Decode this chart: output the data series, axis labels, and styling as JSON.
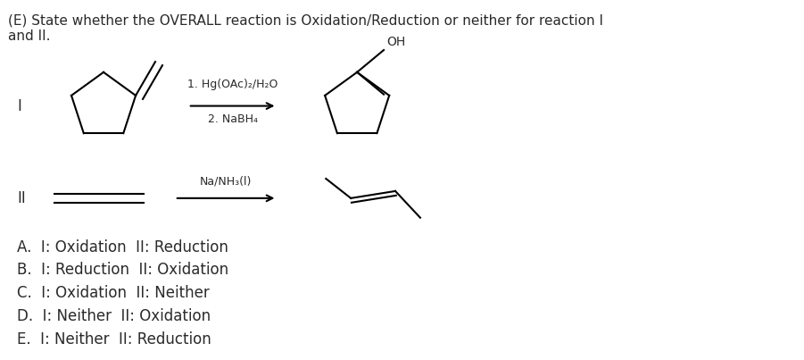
{
  "title_line1": "(E) State whether the OVERALL reaction is Oxidation/Reduction or neither for reaction I",
  "title_line2": "and II.",
  "reaction_label_I": "I",
  "reaction_label_II": "II",
  "reagent_I_line1": "1. Hg(OAc)₂/H₂O",
  "reagent_I_line2": "2. NaBH₄",
  "reagent_II": "Na/NH₃(l)",
  "choices": [
    "A.  I: Oxidation  II: Reduction",
    "B.  I: Reduction  II: Oxidation",
    "C.  I: Oxidation  II: Neither",
    "D.  I: Neither  II: Oxidation",
    "E.  I: Neither  II: Reduction"
  ],
  "bg_color": "#ffffff",
  "text_color": "#2a2a2a",
  "font_size_title": 11,
  "font_size_body": 12,
  "lw": 1.5
}
